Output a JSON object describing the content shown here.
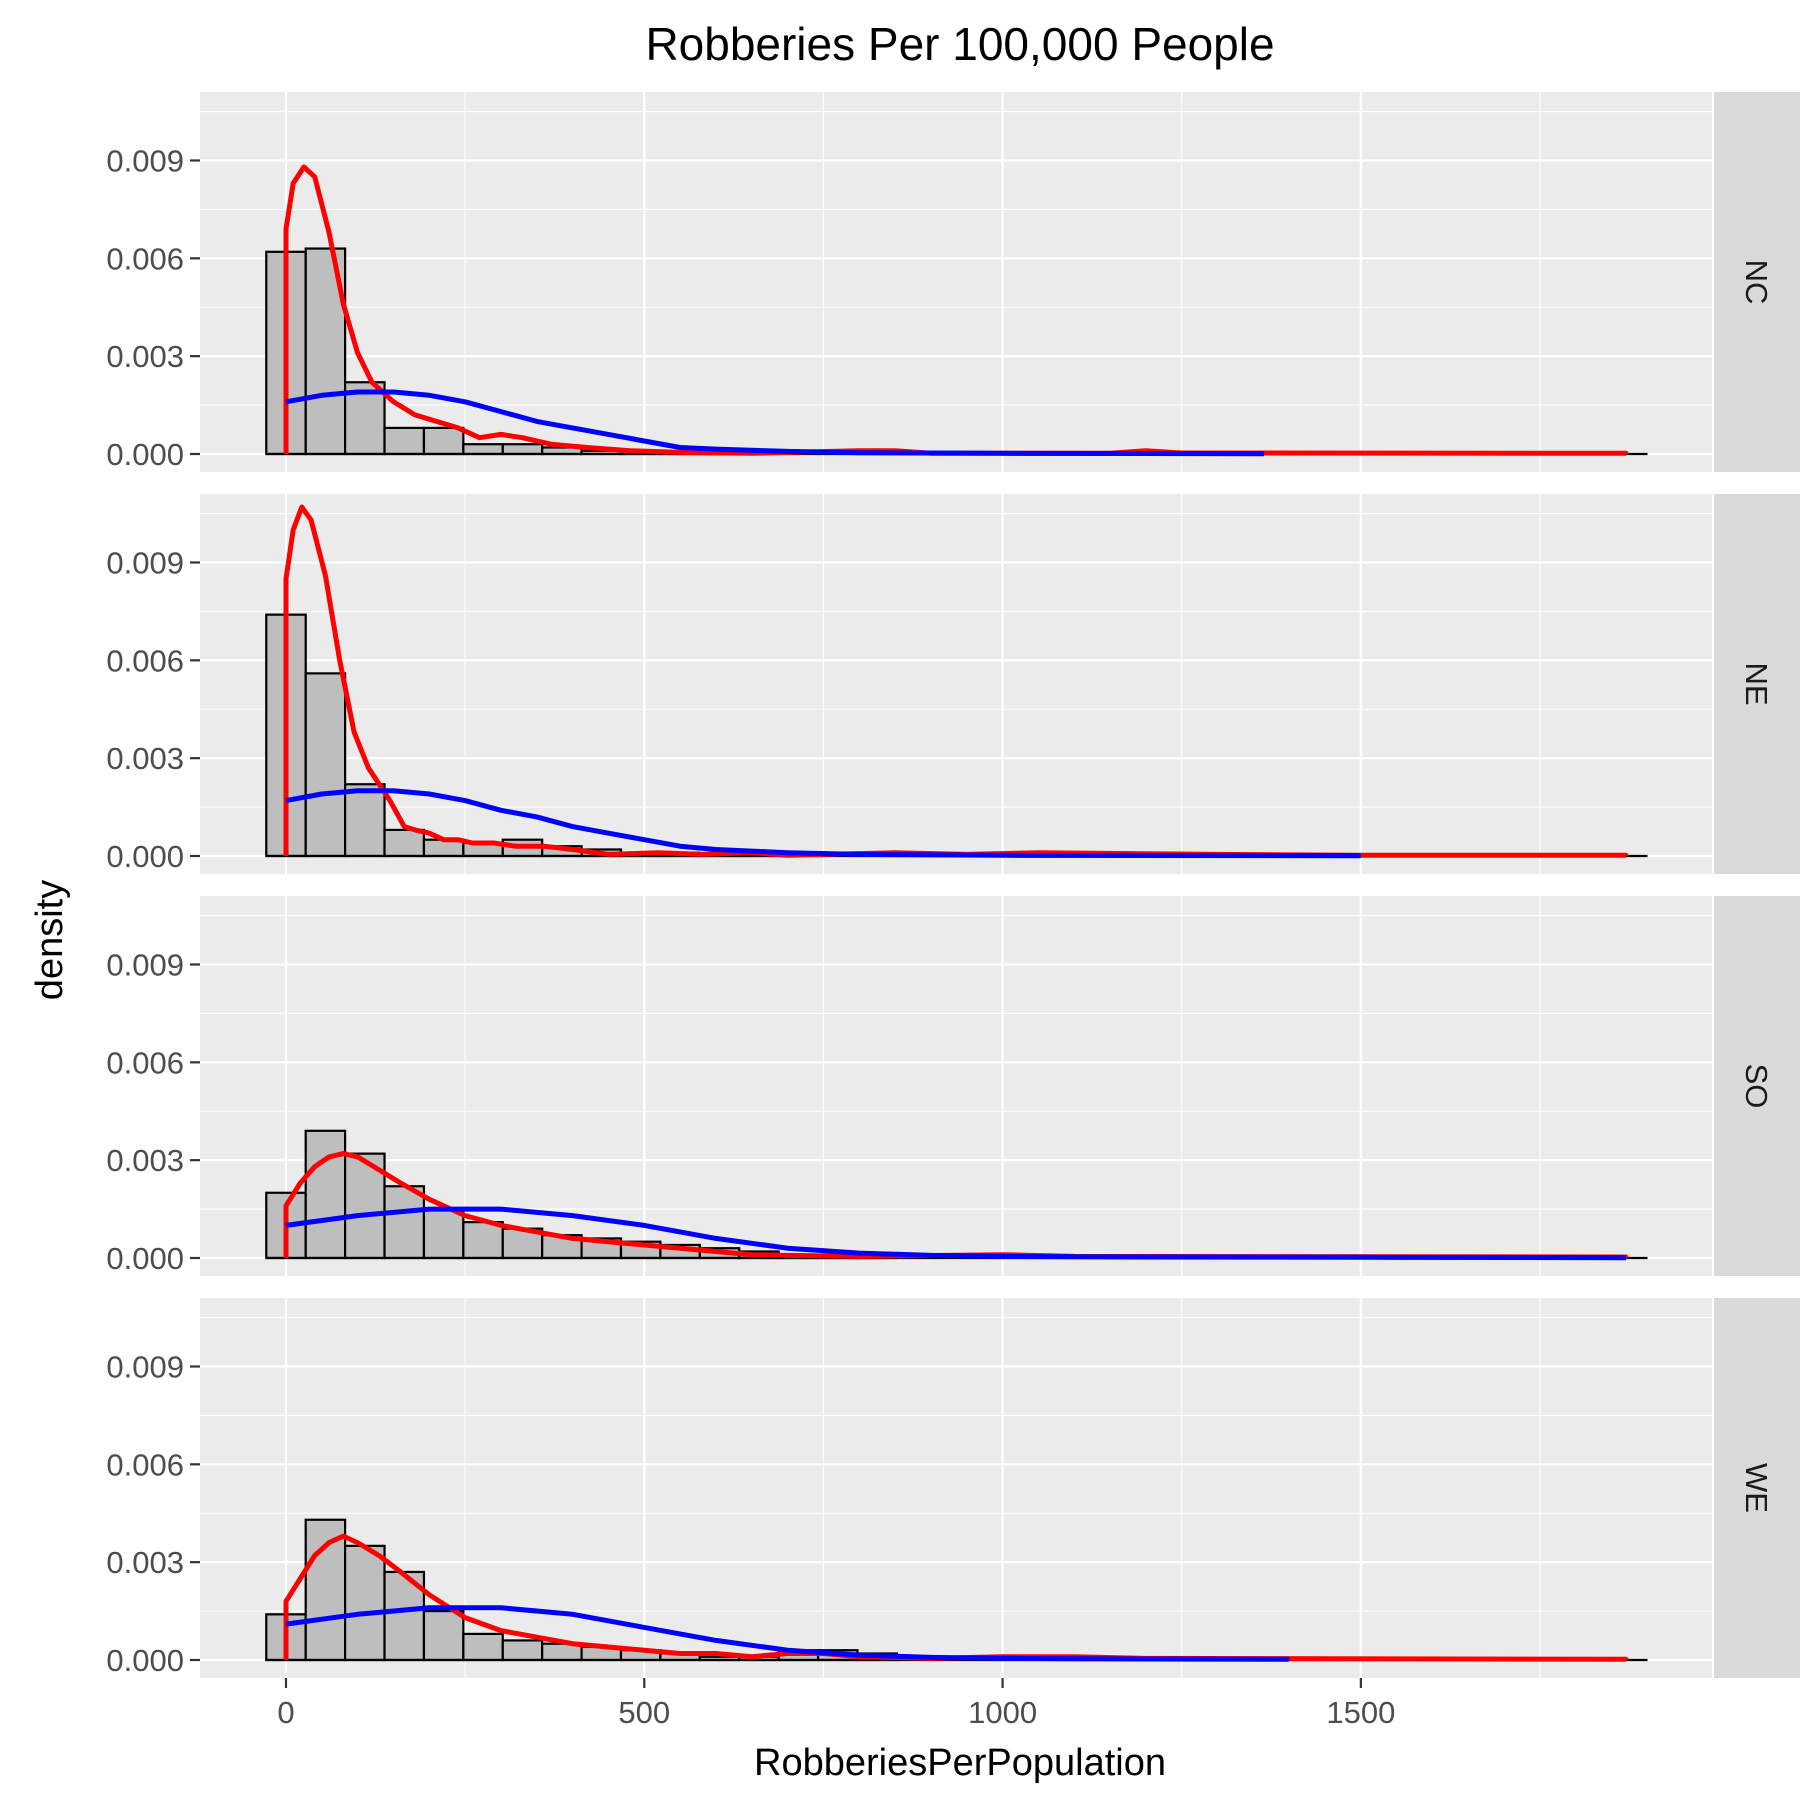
{
  "chart_data": {
    "type": "histogram",
    "title": "Robberies Per 100,000 People",
    "xlabel": "RobberiesPerPopulation",
    "ylabel": "density",
    "xlim": [
      -120,
      1990
    ],
    "ylim": [
      0,
      0.0111
    ],
    "x_ticks": [
      0,
      500,
      1000,
      1500
    ],
    "x_tick_labels": [
      "0",
      "500",
      "1000",
      "1500"
    ],
    "y_ticks": [
      0,
      0.003,
      0.006,
      0.009
    ],
    "y_tick_labels": [
      "0.000",
      "0.003",
      "0.006",
      "0.009"
    ],
    "bin_width": 55,
    "grid": true,
    "facet_strip_position": "right",
    "series": [
      {
        "name": "histogram",
        "color": "#bebebe",
        "outline": "#000000"
      },
      {
        "name": "kernel density",
        "color": "#ff0000"
      },
      {
        "name": "fitted density",
        "color": "#0000ff"
      }
    ],
    "panels": [
      {
        "label": "NC",
        "histogram": [
          {
            "x0": -27.5,
            "x1": 27.5,
            "density": 0.0062
          },
          {
            "x0": 27.5,
            "x1": 82.5,
            "density": 0.0063
          },
          {
            "x0": 82.5,
            "x1": 137.5,
            "density": 0.0022
          },
          {
            "x0": 137.5,
            "x1": 192.5,
            "density": 0.0008
          },
          {
            "x0": 192.5,
            "x1": 247.5,
            "density": 0.0008
          },
          {
            "x0": 247.5,
            "x1": 302.5,
            "density": 0.0003
          },
          {
            "x0": 302.5,
            "x1": 357.5,
            "density": 0.0003
          },
          {
            "x0": 357.5,
            "x1": 412.5,
            "density": 0.0002
          },
          {
            "x0": 412.5,
            "x1": 467.5,
            "density": 0.0001
          },
          {
            "x0": 467.5,
            "x1": 522.5,
            "density": 0.0001
          },
          {
            "x0": 522.5,
            "x1": 577.5,
            "density": 5e-05
          },
          {
            "x0": 577.5,
            "x1": 632.5,
            "density": 3e-05
          }
        ],
        "red": [
          [
            0,
            0
          ],
          [
            0,
            0.0069
          ],
          [
            10,
            0.0083
          ],
          [
            25,
            0.0088
          ],
          [
            40,
            0.0085
          ],
          [
            60,
            0.0068
          ],
          [
            80,
            0.0046
          ],
          [
            100,
            0.0031
          ],
          [
            120,
            0.0022
          ],
          [
            150,
            0.0016
          ],
          [
            180,
            0.0012
          ],
          [
            210,
            0.001
          ],
          [
            240,
            0.0008
          ],
          [
            270,
            0.0005
          ],
          [
            300,
            0.0006
          ],
          [
            330,
            0.0005
          ],
          [
            370,
            0.0003
          ],
          [
            420,
            0.0002
          ],
          [
            480,
            0.0001
          ],
          [
            550,
            5e-05
          ],
          [
            650,
            2e-05
          ],
          [
            800,
            0.0001
          ],
          [
            850,
            0.0001
          ],
          [
            900,
            2e-05
          ],
          [
            1150,
            2e-05
          ],
          [
            1200,
            0.0001
          ],
          [
            1250,
            3e-05
          ],
          [
            1870,
            2e-05
          ],
          [
            1870,
            0
          ]
        ],
        "blue": [
          [
            0,
            0.0016
          ],
          [
            50,
            0.0018
          ],
          [
            100,
            0.0019
          ],
          [
            150,
            0.0019
          ],
          [
            200,
            0.0018
          ],
          [
            250,
            0.0016
          ],
          [
            300,
            0.0013
          ],
          [
            350,
            0.001
          ],
          [
            400,
            0.0008
          ],
          [
            450,
            0.0006
          ],
          [
            500,
            0.0004
          ],
          [
            550,
            0.0002
          ],
          [
            600,
            0.00015
          ],
          [
            700,
            8e-05
          ],
          [
            800,
            4e-05
          ],
          [
            1000,
            2e-05
          ],
          [
            1365,
            1e-05
          ]
        ]
      },
      {
        "label": "NE",
        "histogram": [
          {
            "x0": -27.5,
            "x1": 27.5,
            "density": 0.0074
          },
          {
            "x0": 27.5,
            "x1": 82.5,
            "density": 0.0056
          },
          {
            "x0": 82.5,
            "x1": 137.5,
            "density": 0.0022
          },
          {
            "x0": 137.5,
            "x1": 192.5,
            "density": 0.0008
          },
          {
            "x0": 192.5,
            "x1": 247.5,
            "density": 0.0005
          },
          {
            "x0": 247.5,
            "x1": 302.5,
            "density": 0.0004
          },
          {
            "x0": 302.5,
            "x1": 357.5,
            "density": 0.0005
          },
          {
            "x0": 357.5,
            "x1": 412.5,
            "density": 0.0003
          },
          {
            "x0": 412.5,
            "x1": 467.5,
            "density": 0.0002
          },
          {
            "x0": 467.5,
            "x1": 522.5,
            "density": 0.0001
          },
          {
            "x0": 522.5,
            "x1": 577.5,
            "density": 0.0001
          },
          {
            "x0": 577.5,
            "x1": 632.5,
            "density": 5e-05
          },
          {
            "x0": 632.5,
            "x1": 687.5,
            "density": 5e-05
          }
        ],
        "red": [
          [
            0,
            0
          ],
          [
            0,
            0.0085
          ],
          [
            10,
            0.01
          ],
          [
            22,
            0.0107
          ],
          [
            35,
            0.0103
          ],
          [
            55,
            0.0086
          ],
          [
            75,
            0.006
          ],
          [
            95,
            0.0038
          ],
          [
            115,
            0.0027
          ],
          [
            145,
            0.0017
          ],
          [
            165,
            0.0009
          ],
          [
            180,
            0.0008
          ],
          [
            200,
            0.0007
          ],
          [
            220,
            0.0005
          ],
          [
            240,
            0.0005
          ],
          [
            260,
            0.0004
          ],
          [
            290,
            0.0004
          ],
          [
            320,
            0.0003
          ],
          [
            360,
            0.0003
          ],
          [
            400,
            0.0002
          ],
          [
            450,
            5e-05
          ],
          [
            520,
            0.0001
          ],
          [
            580,
            5e-05
          ],
          [
            650,
            0.0001
          ],
          [
            700,
            2e-05
          ],
          [
            850,
            0.0001
          ],
          [
            950,
            5e-05
          ],
          [
            1050,
            0.0001
          ],
          [
            1300,
            5e-05
          ],
          [
            1500,
            2e-05
          ],
          [
            1870,
            2e-05
          ],
          [
            1870,
            0
          ]
        ],
        "blue": [
          [
            0,
            0.0017
          ],
          [
            50,
            0.0019
          ],
          [
            100,
            0.002
          ],
          [
            150,
            0.002
          ],
          [
            200,
            0.0019
          ],
          [
            250,
            0.0017
          ],
          [
            300,
            0.0014
          ],
          [
            350,
            0.0012
          ],
          [
            400,
            0.0009
          ],
          [
            450,
            0.0007
          ],
          [
            500,
            0.0005
          ],
          [
            550,
            0.0003
          ],
          [
            600,
            0.0002
          ],
          [
            700,
            0.0001
          ],
          [
            800,
            5e-05
          ],
          [
            1000,
            2e-05
          ],
          [
            1500,
            1e-05
          ]
        ]
      },
      {
        "label": "SO",
        "histogram": [
          {
            "x0": -27.5,
            "x1": 27.5,
            "density": 0.002
          },
          {
            "x0": 27.5,
            "x1": 82.5,
            "density": 0.0039
          },
          {
            "x0": 82.5,
            "x1": 137.5,
            "density": 0.0032
          },
          {
            "x0": 137.5,
            "x1": 192.5,
            "density": 0.0022
          },
          {
            "x0": 192.5,
            "x1": 247.5,
            "density": 0.0015
          },
          {
            "x0": 247.5,
            "x1": 302.5,
            "density": 0.0011
          },
          {
            "x0": 302.5,
            "x1": 357.5,
            "density": 0.0009
          },
          {
            "x0": 357.5,
            "x1": 412.5,
            "density": 0.0007
          },
          {
            "x0": 412.5,
            "x1": 467.5,
            "density": 0.0006
          },
          {
            "x0": 467.5,
            "x1": 522.5,
            "density": 0.0005
          },
          {
            "x0": 522.5,
            "x1": 577.5,
            "density": 0.0004
          },
          {
            "x0": 577.5,
            "x1": 632.5,
            "density": 0.0003
          },
          {
            "x0": 632.5,
            "x1": 687.5,
            "density": 0.0002
          },
          {
            "x0": 687.5,
            "x1": 742.5,
            "density": 0.0001
          },
          {
            "x0": 742.5,
            "x1": 797.5,
            "density": 0.0001
          },
          {
            "x0": 797.5,
            "x1": 852.5,
            "density": 0.0001
          }
        ],
        "red": [
          [
            0,
            0
          ],
          [
            0,
            0.0016
          ],
          [
            20,
            0.0023
          ],
          [
            40,
            0.0028
          ],
          [
            60,
            0.0031
          ],
          [
            80,
            0.0032
          ],
          [
            100,
            0.0031
          ],
          [
            130,
            0.0027
          ],
          [
            160,
            0.0023
          ],
          [
            200,
            0.0018
          ],
          [
            250,
            0.0013
          ],
          [
            300,
            0.001
          ],
          [
            350,
            0.0008
          ],
          [
            400,
            0.0006
          ],
          [
            450,
            0.0005
          ],
          [
            500,
            0.0004
          ],
          [
            550,
            0.0003
          ],
          [
            600,
            0.0002
          ],
          [
            650,
            0.0001
          ],
          [
            700,
            8e-05
          ],
          [
            800,
            5e-05
          ],
          [
            1000,
            0.0001
          ],
          [
            1100,
            5e-05
          ],
          [
            1870,
            3e-05
          ],
          [
            1870,
            0
          ]
        ],
        "blue": [
          [
            0,
            0.001
          ],
          [
            100,
            0.0013
          ],
          [
            200,
            0.0015
          ],
          [
            300,
            0.0015
          ],
          [
            400,
            0.0013
          ],
          [
            500,
            0.001
          ],
          [
            600,
            0.0006
          ],
          [
            700,
            0.0003
          ],
          [
            800,
            0.00015
          ],
          [
            900,
            8e-05
          ],
          [
            1000,
            5e-05
          ],
          [
            1200,
            3e-05
          ],
          [
            1500,
            2e-05
          ],
          [
            1870,
            1e-05
          ]
        ]
      },
      {
        "label": "WE",
        "histogram": [
          {
            "x0": -27.5,
            "x1": 27.5,
            "density": 0.0014
          },
          {
            "x0": 27.5,
            "x1": 82.5,
            "density": 0.0043
          },
          {
            "x0": 82.5,
            "x1": 137.5,
            "density": 0.0035
          },
          {
            "x0": 137.5,
            "x1": 192.5,
            "density": 0.0027
          },
          {
            "x0": 192.5,
            "x1": 247.5,
            "density": 0.0015
          },
          {
            "x0": 247.5,
            "x1": 302.5,
            "density": 0.0008
          },
          {
            "x0": 302.5,
            "x1": 357.5,
            "density": 0.0006
          },
          {
            "x0": 357.5,
            "x1": 412.5,
            "density": 0.0005
          },
          {
            "x0": 412.5,
            "x1": 467.5,
            "density": 0.0004
          },
          {
            "x0": 467.5,
            "x1": 522.5,
            "density": 0.0003
          },
          {
            "x0": 522.5,
            "x1": 577.5,
            "density": 0.0002
          },
          {
            "x0": 577.5,
            "x1": 632.5,
            "density": 0.0001
          },
          {
            "x0": 632.5,
            "x1": 687.5,
            "density": 0.0001
          },
          {
            "x0": 687.5,
            "x1": 742.5,
            "density": 0.0003
          },
          {
            "x0": 742.5,
            "x1": 797.5,
            "density": 0.0003
          },
          {
            "x0": 797.5,
            "x1": 852.5,
            "density": 0.0002
          }
        ],
        "red": [
          [
            0,
            0
          ],
          [
            0,
            0.0018
          ],
          [
            20,
            0.0025
          ],
          [
            40,
            0.0032
          ],
          [
            60,
            0.0036
          ],
          [
            80,
            0.0038
          ],
          [
            100,
            0.0036
          ],
          [
            130,
            0.0032
          ],
          [
            160,
            0.0027
          ],
          [
            200,
            0.002
          ],
          [
            250,
            0.0013
          ],
          [
            300,
            0.0009
          ],
          [
            350,
            0.0007
          ],
          [
            400,
            0.0005
          ],
          [
            450,
            0.0004
          ],
          [
            500,
            0.0003
          ],
          [
            550,
            0.0002
          ],
          [
            600,
            0.0002
          ],
          [
            650,
            0.0001
          ],
          [
            700,
            0.0002
          ],
          [
            750,
            0.0002
          ],
          [
            800,
            0.0001
          ],
          [
            900,
            5e-05
          ],
          [
            1000,
            0.0001
          ],
          [
            1100,
            0.0001
          ],
          [
            1200,
            5e-05
          ],
          [
            1870,
            2e-05
          ],
          [
            1870,
            0
          ]
        ],
        "blue": [
          [
            0,
            0.0011
          ],
          [
            100,
            0.0014
          ],
          [
            200,
            0.0016
          ],
          [
            300,
            0.0016
          ],
          [
            400,
            0.0014
          ],
          [
            500,
            0.001
          ],
          [
            600,
            0.0006
          ],
          [
            700,
            0.0003
          ],
          [
            800,
            0.00015
          ],
          [
            900,
            8e-05
          ],
          [
            1000,
            5e-05
          ],
          [
            1200,
            3e-05
          ],
          [
            1400,
            2e-05
          ]
        ]
      }
    ]
  }
}
